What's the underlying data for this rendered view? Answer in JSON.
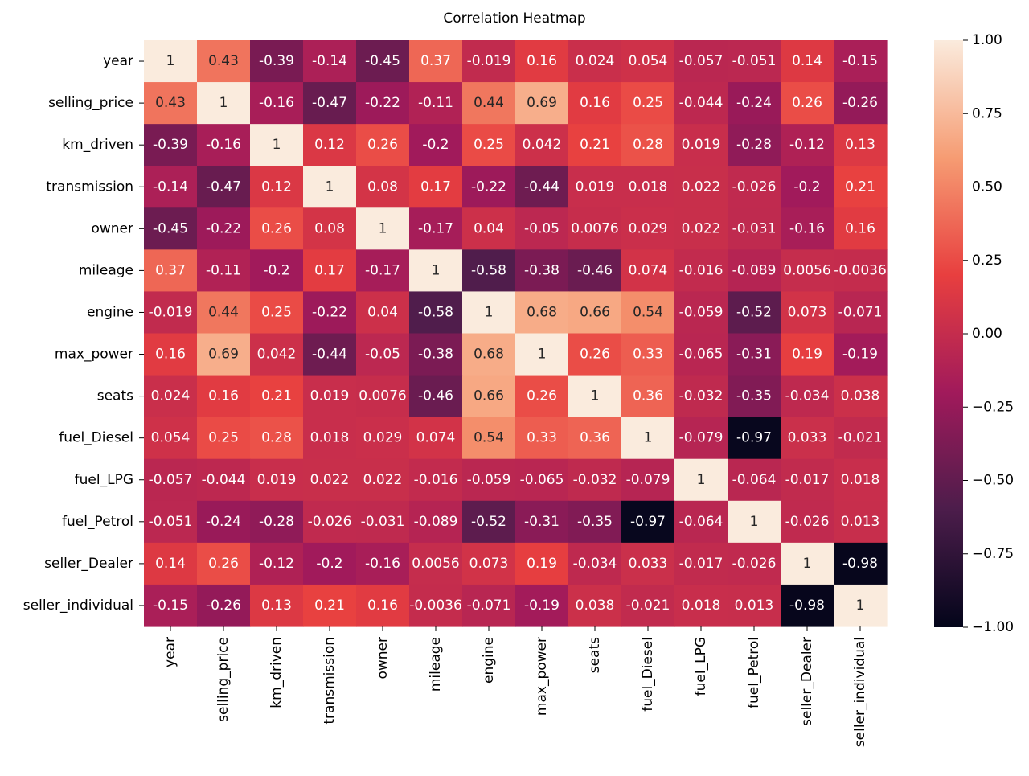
{
  "chart_data": {
    "type": "heatmap",
    "title": "Correlation Heatmap",
    "xlabel": "",
    "ylabel": "",
    "labels": [
      "year",
      "selling_price",
      "km_driven",
      "transmission",
      "owner",
      "mileage",
      "engine",
      "max_power",
      "seats",
      "fuel_Diesel",
      "fuel_LPG",
      "fuel_Petrol",
      "seller_Dealer",
      "seller_individual"
    ],
    "values": [
      [
        "1",
        "0.43",
        "-0.39",
        "-0.14",
        "-0.45",
        "0.37",
        "-0.019",
        "0.16",
        "0.024",
        "0.054",
        "-0.057",
        "-0.051",
        "0.14",
        "-0.15"
      ],
      [
        "0.43",
        "1",
        "-0.16",
        "-0.47",
        "-0.22",
        "-0.11",
        "0.44",
        "0.69",
        "0.16",
        "0.25",
        "-0.044",
        "-0.24",
        "0.26",
        "-0.26"
      ],
      [
        "-0.39",
        "-0.16",
        "1",
        "0.12",
        "0.26",
        "-0.2",
        "0.25",
        "0.042",
        "0.21",
        "0.28",
        "0.019",
        "-0.28",
        "-0.12",
        "0.13"
      ],
      [
        "-0.14",
        "-0.47",
        "0.12",
        "1",
        "0.08",
        "0.17",
        "-0.22",
        "-0.44",
        "0.019",
        "0.018",
        "0.022",
        "-0.026",
        "-0.2",
        "0.21"
      ],
      [
        "-0.45",
        "-0.22",
        "0.26",
        "0.08",
        "1",
        "-0.17",
        "0.04",
        "-0.05",
        "0.0076",
        "0.029",
        "0.022",
        "-0.031",
        "-0.16",
        "0.16"
      ],
      [
        "0.37",
        "-0.11",
        "-0.2",
        "0.17",
        "-0.17",
        "1",
        "-0.58",
        "-0.38",
        "-0.46",
        "0.074",
        "-0.016",
        "-0.089",
        "0.0056",
        "-0.0036"
      ],
      [
        "-0.019",
        "0.44",
        "0.25",
        "-0.22",
        "0.04",
        "-0.58",
        "1",
        "0.68",
        "0.66",
        "0.54",
        "-0.059",
        "-0.52",
        "0.073",
        "-0.071"
      ],
      [
        "0.16",
        "0.69",
        "0.042",
        "-0.44",
        "-0.05",
        "-0.38",
        "0.68",
        "1",
        "0.26",
        "0.33",
        "-0.065",
        "-0.31",
        "0.19",
        "-0.19"
      ],
      [
        "0.024",
        "0.16",
        "0.21",
        "0.019",
        "0.0076",
        "-0.46",
        "0.66",
        "0.26",
        "1",
        "0.36",
        "-0.032",
        "-0.35",
        "-0.034",
        "0.038"
      ],
      [
        "0.054",
        "0.25",
        "0.28",
        "0.018",
        "0.029",
        "0.074",
        "0.54",
        "0.33",
        "0.36",
        "1",
        "-0.079",
        "-0.97",
        "0.033",
        "-0.021"
      ],
      [
        "-0.057",
        "-0.044",
        "0.019",
        "0.022",
        "0.022",
        "-0.016",
        "-0.059",
        "-0.065",
        "-0.032",
        "-0.079",
        "1",
        "-0.064",
        "-0.017",
        "0.018"
      ],
      [
        "-0.051",
        "-0.24",
        "-0.28",
        "-0.026",
        "-0.031",
        "-0.089",
        "-0.52",
        "-0.31",
        "-0.35",
        "-0.97",
        "-0.064",
        "1",
        "-0.026",
        "0.013"
      ],
      [
        "0.14",
        "0.26",
        "-0.12",
        "-0.2",
        "-0.16",
        "0.0056",
        "0.073",
        "0.19",
        "-0.034",
        "0.033",
        "-0.017",
        "-0.026",
        "1",
        "-0.98"
      ],
      [
        "-0.15",
        "-0.26",
        "0.13",
        "0.21",
        "0.16",
        "-0.0036",
        "-0.071",
        "-0.19",
        "0.038",
        "-0.021",
        "0.018",
        "0.013",
        "-0.98",
        "1"
      ]
    ],
    "colorbar": {
      "range": [
        -1,
        1
      ],
      "ticks": [
        "1.00",
        "0.75",
        "0.50",
        "0.25",
        "0.00",
        "−0.25",
        "−0.50",
        "−0.75",
        "−1.00"
      ],
      "tick_values": [
        1,
        0.75,
        0.5,
        0.25,
        0,
        -0.25,
        -0.5,
        -0.75,
        -1
      ]
    },
    "colormap_stops": [
      "#03051a",
      "#4c1d4b",
      "#a11a5b",
      "#e83f3f",
      "#f69c73",
      "#faebdd"
    ],
    "grid": false,
    "annotations": true
  }
}
